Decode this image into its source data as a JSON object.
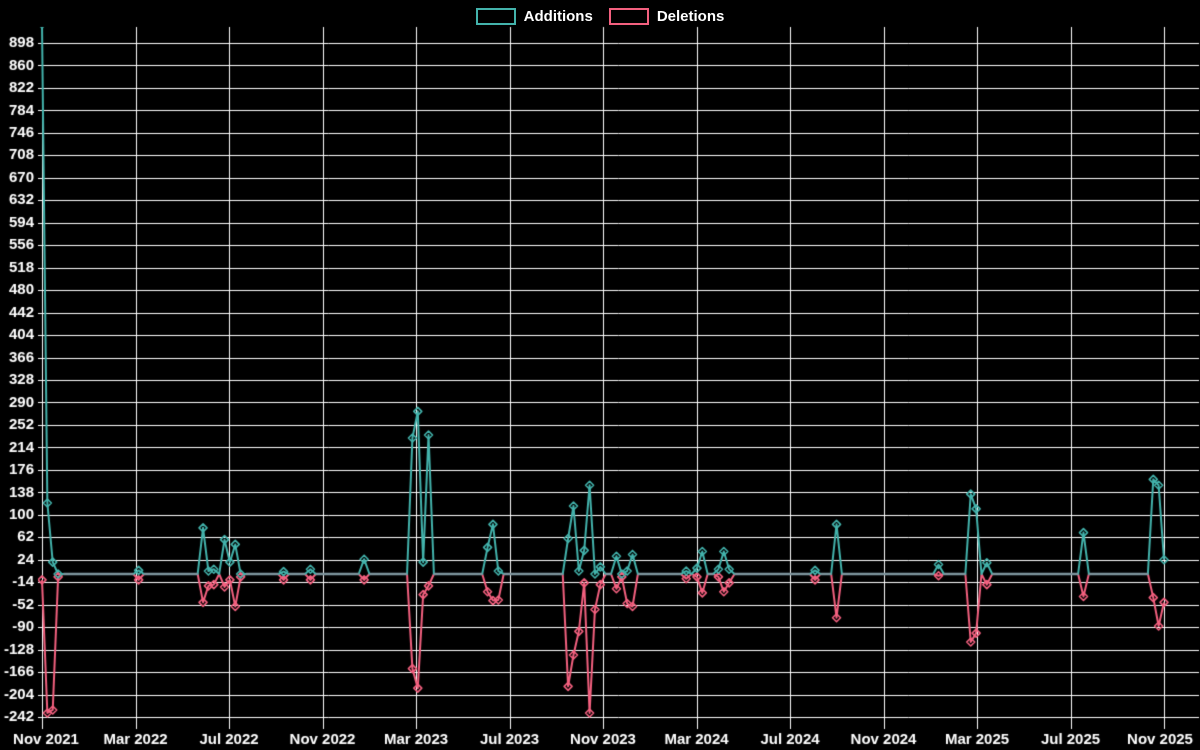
{
  "legend": {
    "items": [
      {
        "label": "Additions",
        "color": "#43b3ac"
      },
      {
        "label": "Deletions",
        "color": "#f3607f"
      }
    ]
  },
  "chart_data": {
    "type": "line",
    "title": "",
    "xlabel": "",
    "ylabel": "",
    "background": "#000000",
    "grid": true,
    "grid_color": "#ffffff",
    "text_color": "#ffffff",
    "zero_overlap_color": "#7e959e",
    "legend_position": "top-center",
    "x_tick_labels": [
      "Nov 2021",
      "Mar 2022",
      "Jul 2022",
      "Nov 2022",
      "Mar 2023",
      "Jul 2023",
      "Nov 2023",
      "Mar 2024",
      "Jul 2024",
      "Nov 2024",
      "Mar 2025",
      "Jul 2025",
      "Nov 2025"
    ],
    "y_ticks": [
      898,
      860,
      822,
      784,
      746,
      708,
      670,
      632,
      594,
      556,
      518,
      480,
      442,
      404,
      366,
      328,
      290,
      252,
      214,
      176,
      138,
      100,
      62,
      24,
      -14,
      -52,
      -90,
      -128,
      -166,
      -204,
      -242
    ],
    "ylim": [
      -252,
      925
    ],
    "x_unit": "week",
    "n_weeks": 210,
    "series": [
      {
        "name": "Additions",
        "color": "#43b3ac",
        "marker": "diamond"
      },
      {
        "name": "Deletions",
        "color": "#f3607f",
        "marker": "diamond"
      }
    ],
    "points_format": [
      "week_index",
      "additions",
      "deletions"
    ],
    "points": [
      [
        0,
        930,
        -10
      ],
      [
        1,
        120,
        -235
      ],
      [
        2,
        20,
        -230
      ],
      [
        3,
        0,
        -5
      ],
      [
        18,
        6,
        -10
      ],
      [
        30,
        78,
        -48
      ],
      [
        31,
        5,
        -20
      ],
      [
        32,
        8,
        -18
      ],
      [
        34,
        58,
        -22
      ],
      [
        35,
        20,
        -10
      ],
      [
        36,
        50,
        -55
      ],
      [
        37,
        0,
        -5
      ],
      [
        45,
        4,
        -10
      ],
      [
        50,
        8,
        -10
      ],
      [
        60,
        25,
        -10
      ],
      [
        69,
        230,
        -160
      ],
      [
        70,
        275,
        -193
      ],
      [
        71,
        20,
        -35
      ],
      [
        72,
        235,
        -20
      ],
      [
        83,
        45,
        -30
      ],
      [
        84,
        84,
        -45
      ],
      [
        85,
        5,
        -44
      ],
      [
        98,
        60,
        -190
      ],
      [
        99,
        115,
        -137
      ],
      [
        100,
        5,
        -97
      ],
      [
        101,
        40,
        -15
      ],
      [
        102,
        150,
        -235
      ],
      [
        103,
        0,
        -60
      ],
      [
        104,
        12,
        -18
      ],
      [
        107,
        30,
        -25
      ],
      [
        108,
        0,
        -5
      ],
      [
        109,
        5,
        -50
      ],
      [
        110,
        33,
        -55
      ],
      [
        120,
        5,
        -8
      ],
      [
        122,
        10,
        -5
      ],
      [
        123,
        38,
        -32
      ],
      [
        126,
        8,
        -5
      ],
      [
        127,
        38,
        -30
      ],
      [
        128,
        8,
        -15
      ],
      [
        144,
        6,
        -10
      ],
      [
        148,
        84,
        -74
      ],
      [
        167,
        16,
        -3
      ],
      [
        173,
        135,
        -115
      ],
      [
        174,
        110,
        -100
      ],
      [
        176,
        19,
        -18
      ],
      [
        194,
        70,
        -38
      ],
      [
        207,
        160,
        -40
      ],
      [
        208,
        150,
        -88
      ],
      [
        209,
        24,
        -48
      ]
    ]
  }
}
